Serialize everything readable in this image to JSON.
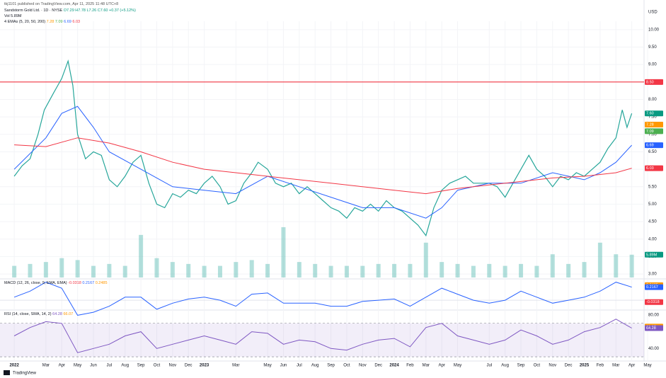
{
  "chart_data": {
    "type": "line",
    "publisher": "tkj1101 published on TradingView.com, Apr 11, 2025 11:48 UTC+8",
    "title": "Sandstorm Gold Ltd. · 1D · NYSE",
    "ohlc": "O7.29 H7.78 L7.26 C7.60 +0.37 (+5.12%)",
    "volume_label": "Vol 5.89M",
    "ema_label": "4 EMAs (5, 20, 50, 200)",
    "ema_values": [
      "7.28",
      "7.09",
      "6.69",
      "6.03"
    ],
    "currency": "USD",
    "brand": "TradingView",
    "xlim": [
      -0.9,
      40.0
    ],
    "xticks": [
      {
        "value": 0,
        "label": "2022"
      },
      {
        "value": 2,
        "label": "Mar"
      },
      {
        "value": 3,
        "label": "Apr"
      },
      {
        "value": 4,
        "label": "May"
      },
      {
        "value": 5,
        "label": "Jun"
      },
      {
        "value": 6,
        "label": "Jul"
      },
      {
        "value": 7,
        "label": "Aug"
      },
      {
        "value": 8,
        "label": "Sep"
      },
      {
        "value": 9,
        "label": "Oct"
      },
      {
        "value": 10,
        "label": "Nov"
      },
      {
        "value": 11,
        "label": "Dec"
      },
      {
        "value": 12,
        "label": "2023"
      },
      {
        "value": 14,
        "label": "Mar"
      },
      {
        "value": 16,
        "label": "May"
      },
      {
        "value": 17,
        "label": "Jun"
      },
      {
        "value": 18,
        "label": "Jul"
      },
      {
        "value": 19,
        "label": "Aug"
      },
      {
        "value": 20,
        "label": "Sep"
      },
      {
        "value": 21,
        "label": "Oct"
      },
      {
        "value": 22,
        "label": "Nov"
      },
      {
        "value": 23,
        "label": "Dec"
      },
      {
        "value": 24,
        "label": "2024"
      },
      {
        "value": 25,
        "label": "Feb"
      },
      {
        "value": 26,
        "label": "Mar"
      },
      {
        "value": 27,
        "label": "Apr"
      },
      {
        "value": 28,
        "label": "May"
      },
      {
        "value": 30,
        "label": "Jul"
      },
      {
        "value": 31,
        "label": "Aug"
      },
      {
        "value": 32,
        "label": "Sep"
      },
      {
        "value": 33,
        "label": "Oct"
      },
      {
        "value": 34,
        "label": "Nov"
      },
      {
        "value": 35,
        "label": "Dec"
      },
      {
        "value": 36,
        "label": "2025"
      },
      {
        "value": 37,
        "label": "Feb"
      },
      {
        "value": 38,
        "label": "Mar"
      },
      {
        "value": 39,
        "label": "Apr"
      },
      {
        "value": 40,
        "label": "May"
      }
    ],
    "ylim": [
      2.9,
      10.24
    ],
    "yticks": [
      {
        "value": 3,
        "label": "3.00"
      },
      {
        "value": 3.5,
        "label": "3.50"
      },
      {
        "value": 4,
        "label": "4.00"
      },
      {
        "value": 4.5,
        "label": "4.50"
      },
      {
        "value": 5,
        "label": "5.00"
      },
      {
        "value": 5.5,
        "label": "5.50"
      },
      {
        "value": 6,
        "label": "6.00"
      },
      {
        "value": 6.5,
        "label": "6.50"
      },
      {
        "value": 7,
        "label": "7.00"
      },
      {
        "value": 7.5,
        "label": "7.50"
      },
      {
        "value": 8,
        "label": "8.00"
      },
      {
        "value": 8.5,
        "label": "8.50"
      },
      {
        "value": 9,
        "label": "9.00"
      },
      {
        "value": 9.5,
        "label": "9.50"
      },
      {
        "value": 10,
        "label": "10.00"
      }
    ],
    "hline": {
      "value": 8.5,
      "color": "#f23645"
    },
    "series": [
      {
        "name": "Price",
        "color": "#26a69a",
        "width": 1.2,
        "x": [
          0,
          0.5,
          1,
          1.5,
          1.9,
          2.5,
          3,
          3.4,
          3.7,
          4,
          4.5,
          5,
          5.5,
          6,
          6.5,
          7,
          7.5,
          8,
          8.5,
          9,
          9.5,
          10,
          10.5,
          11,
          11.5,
          12,
          12.5,
          13,
          13.5,
          14,
          14.5,
          15,
          15.4,
          16,
          16.5,
          17,
          17.5,
          18,
          18.5,
          19,
          19.5,
          20,
          20.5,
          21,
          21.5,
          22,
          22.5,
          23,
          23.5,
          24,
          24.5,
          25,
          25.5,
          26,
          26.5,
          27,
          27.5,
          28,
          28.5,
          29,
          29.5,
          30,
          30.5,
          31,
          31.5,
          32,
          32.5,
          33,
          33.5,
          34,
          34.5,
          35,
          35.5,
          36,
          36.5,
          37,
          37.5,
          38,
          38.4,
          38.7,
          39.0
        ],
        "values": [
          5.8,
          6.1,
          6.3,
          7.0,
          7.7,
          8.2,
          8.6,
          9.1,
          8.4,
          7.0,
          6.3,
          6.5,
          6.4,
          5.7,
          5.5,
          5.8,
          6.2,
          6.4,
          5.6,
          5.0,
          4.9,
          5.3,
          5.2,
          5.4,
          5.3,
          5.6,
          5.8,
          5.5,
          5.0,
          5.1,
          5.6,
          5.9,
          6.2,
          6.0,
          5.6,
          5.5,
          5.6,
          5.3,
          5.5,
          5.3,
          5.1,
          4.9,
          4.8,
          4.6,
          4.9,
          4.8,
          5.0,
          4.8,
          5.1,
          4.9,
          4.8,
          4.6,
          4.4,
          4.1,
          4.9,
          5.4,
          5.6,
          5.7,
          5.8,
          5.6,
          5.6,
          5.6,
          5.5,
          5.2,
          5.6,
          6.0,
          6.4,
          6.0,
          5.8,
          5.5,
          5.8,
          5.7,
          5.9,
          5.8,
          6.0,
          6.2,
          6.6,
          6.9,
          7.7,
          7.2,
          7.6
        ]
      },
      {
        "name": "EMA 50",
        "color": "#2962ff",
        "width": 1,
        "x": [
          0,
          2,
          3,
          4,
          5,
          6,
          8,
          10,
          12,
          14,
          16,
          18,
          20,
          22,
          24,
          26,
          27,
          28,
          30,
          32,
          34,
          36,
          37,
          38,
          39
        ],
        "values": [
          6.0,
          6.9,
          7.6,
          7.8,
          7.2,
          6.5,
          6.0,
          5.5,
          5.4,
          5.3,
          5.8,
          5.5,
          5.2,
          4.9,
          4.9,
          4.6,
          4.9,
          5.4,
          5.6,
          5.6,
          5.9,
          5.7,
          5.9,
          6.2,
          6.69
        ]
      },
      {
        "name": "EMA 200",
        "color": "#f23645",
        "width": 1,
        "x": [
          0,
          2,
          4,
          6,
          8,
          10,
          12,
          14,
          16,
          18,
          20,
          22,
          24,
          26,
          28,
          30,
          32,
          34,
          36,
          38,
          39
        ],
        "values": [
          6.7,
          6.65,
          6.9,
          6.75,
          6.5,
          6.2,
          6.0,
          5.9,
          5.8,
          5.7,
          5.6,
          5.5,
          5.4,
          5.3,
          5.45,
          5.55,
          5.65,
          5.75,
          5.8,
          5.9,
          6.03
        ]
      }
    ],
    "last_values": [
      {
        "value": 8.5,
        "label": "8.50",
        "color": "#f23645"
      },
      {
        "value": 7.6,
        "label": "7.60",
        "color": "#089981"
      },
      {
        "value": 7.28,
        "label": "7.28",
        "color": "#ff9800"
      },
      {
        "value": 7.09,
        "label": "7.09",
        "color": "#4caf50"
      },
      {
        "value": 6.69,
        "label": "6.69",
        "color": "#2962ff"
      },
      {
        "value": 6.03,
        "label": "6.03",
        "color": "#f23645"
      }
    ],
    "volume": {
      "ylim": [
        0,
        15
      ],
      "color": "#26a69a",
      "x": [
        0,
        1,
        2,
        3,
        4,
        5,
        6,
        7,
        8,
        9,
        10,
        11,
        12,
        13,
        14,
        15,
        16,
        17,
        18,
        19,
        20,
        21,
        22,
        23,
        24,
        25,
        26,
        27,
        28,
        29,
        30,
        31,
        32,
        33,
        34,
        35,
        36,
        37,
        38,
        39
      ],
      "values": [
        3,
        3.5,
        4,
        5,
        4.5,
        3,
        3.5,
        3,
        11,
        5,
        4,
        3.5,
        3,
        3,
        4,
        4.5,
        3.5,
        13,
        4,
        3.5,
        3,
        3,
        3,
        3.5,
        3.5,
        3.5,
        9,
        4,
        3.5,
        3,
        3.5,
        3,
        3.5,
        3,
        6,
        3.5,
        4,
        9,
        6,
        5.89
      ],
      "last": {
        "value": 5.89,
        "label": "5.89M",
        "color": "#089981"
      }
    },
    "macd": {
      "label": "MACD (12, 26, close, 9, EMA, EMA)",
      "readout": [
        "-0.0318",
        "0.2167",
        "0.2485"
      ],
      "ylim": [
        -0.14,
        0.33
      ],
      "color": "#2962ff",
      "x": [
        0,
        1,
        2,
        3,
        4,
        5,
        6,
        7,
        8,
        9,
        10,
        11,
        12,
        13,
        14,
        15,
        16,
        17,
        18,
        19,
        20,
        21,
        22,
        23,
        24,
        25,
        26,
        27,
        28,
        29,
        30,
        31,
        32,
        33,
        34,
        35,
        36,
        37,
        38,
        39
      ],
      "values": [
        0.05,
        0.15,
        0.3,
        0.2,
        -0.25,
        -0.2,
        -0.1,
        0.05,
        0.05,
        -0.15,
        -0.05,
        0.02,
        0.05,
        0.0,
        -0.1,
        0.1,
        0.12,
        -0.05,
        -0.05,
        -0.05,
        -0.1,
        -0.1,
        -0.02,
        0.0,
        0.02,
        -0.1,
        0.05,
        0.2,
        0.1,
        0.0,
        -0.05,
        0.0,
        0.15,
        0.05,
        -0.05,
        0.0,
        0.05,
        0.15,
        0.3,
        0.2167
      ],
      "last_values": [
        {
          "value": 0.2485,
          "label": "0.2485",
          "color": "#ff9800"
        },
        {
          "value": 0.2167,
          "label": "0.2167",
          "color": "#2962ff"
        },
        {
          "value": -0.0318,
          "label": "-0.0318",
          "color": "#f23645"
        }
      ]
    },
    "rsi": {
      "label": "RSI (14, close, SMA, 14, 2)",
      "readout": [
        "64.28",
        "66.07"
      ],
      "ylim": [
        25,
        85
      ],
      "band": [
        30,
        70
      ],
      "color": "#7e57c2",
      "yticks": [
        {
          "value": 40,
          "label": "40.00"
        },
        {
          "value": 80,
          "label": "80.00"
        }
      ],
      "x": [
        0,
        1,
        2,
        3,
        4,
        5,
        6,
        7,
        8,
        9,
        10,
        11,
        12,
        13,
        14,
        15,
        16,
        17,
        18,
        19,
        20,
        21,
        22,
        23,
        24,
        25,
        26,
        27,
        28,
        29,
        30,
        31,
        32,
        33,
        34,
        35,
        36,
        37,
        38,
        39
      ],
      "values": [
        55,
        65,
        72,
        70,
        35,
        40,
        45,
        55,
        60,
        40,
        45,
        50,
        55,
        50,
        45,
        60,
        58,
        45,
        50,
        48,
        40,
        38,
        45,
        50,
        52,
        42,
        65,
        70,
        55,
        50,
        45,
        50,
        62,
        55,
        45,
        50,
        60,
        65,
        75,
        64.28
      ],
      "last_values": [
        {
          "value": 66.07,
          "label": "66.07",
          "color": "#ff9800"
        },
        {
          "value": 64.28,
          "label": "64.28",
          "color": "#7e57c2"
        }
      ]
    }
  }
}
